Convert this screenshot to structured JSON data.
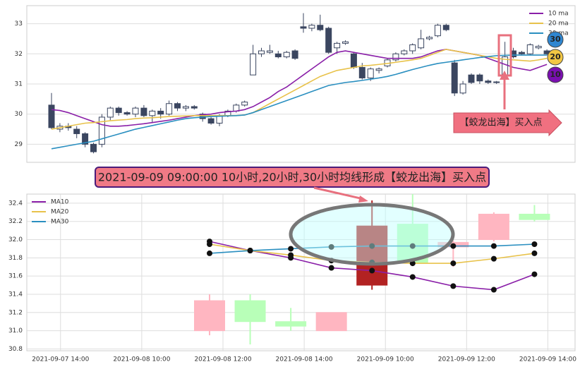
{
  "chart_data": [
    {
      "type": "candlestick",
      "open": [
        30.3,
        29.5,
        29.6,
        29.5,
        29.35,
        29.0,
        29.0,
        29.9,
        30.2,
        30.05,
        30.0,
        30.2,
        29.95,
        30.1,
        30.0,
        30.35,
        30.2,
        30.25,
        30.0,
        29.85,
        29.7,
        29.95,
        30.1,
        30.3,
        31.3,
        32.0,
        32.05,
        32.0,
        31.9,
        32.1,
        32.9,
        32.85,
        32.95,
        32.85,
        32.2,
        32.35,
        32.0,
        31.55,
        31.2,
        31.45,
        31.6,
        31.8,
        32.0,
        32.1,
        32.2,
        32.5,
        32.6,
        32.95,
        31.7,
        30.7,
        31.3,
        31.3,
        31.1,
        31.05,
        31.3,
        32.1,
        32.05,
        32.0,
        32.2,
        32.1
      ],
      "close": [
        29.55,
        29.6,
        29.55,
        29.35,
        29.0,
        28.75,
        29.9,
        30.2,
        30.05,
        30.0,
        30.2,
        29.95,
        30.1,
        30.0,
        30.35,
        30.2,
        30.25,
        30.2,
        29.85,
        29.7,
        29.95,
        30.1,
        30.3,
        30.4,
        32.0,
        32.1,
        32.1,
        31.9,
        32.05,
        31.85,
        32.85,
        32.95,
        32.8,
        32.05,
        32.35,
        32.4,
        31.55,
        31.2,
        31.5,
        31.5,
        31.8,
        32.0,
        32.1,
        32.3,
        32.5,
        32.55,
        32.95,
        32.8,
        30.7,
        31.0,
        31.05,
        31.1,
        31.05,
        31.07,
        31.9,
        31.9,
        32.0,
        32.3,
        32.25,
        32.0
      ],
      "high": [
        30.7,
        29.7,
        29.7,
        29.6,
        29.4,
        29.05,
        30.0,
        30.25,
        30.25,
        30.1,
        30.25,
        30.3,
        30.15,
        30.2,
        30.45,
        30.4,
        30.3,
        30.3,
        30.05,
        29.9,
        30.0,
        30.15,
        30.35,
        30.45,
        32.3,
        32.2,
        32.3,
        32.1,
        32.1,
        32.15,
        33.35,
        33.0,
        33.3,
        32.9,
        32.4,
        32.45,
        32.05,
        31.7,
        31.55,
        31.55,
        31.85,
        32.05,
        32.15,
        32.35,
        32.8,
        32.6,
        33.0,
        33.0,
        31.8,
        31.1,
        31.35,
        31.35,
        31.15,
        31.1,
        32.4,
        32.2,
        32.1,
        32.35,
        32.3,
        32.15
      ],
      "low": [
        29.5,
        29.4,
        29.45,
        29.2,
        28.9,
        28.7,
        28.9,
        29.8,
        29.95,
        29.95,
        29.9,
        29.9,
        29.7,
        29.85,
        29.95,
        30.1,
        30.1,
        30.15,
        29.75,
        29.65,
        29.6,
        29.9,
        30.05,
        30.25,
        31.3,
        31.9,
        32.0,
        31.85,
        31.85,
        31.8,
        32.7,
        32.75,
        32.75,
        32.0,
        32.0,
        32.3,
        31.5,
        31.15,
        31.1,
        31.35,
        31.55,
        31.75,
        31.95,
        32.0,
        32.15,
        32.45,
        32.55,
        32.75,
        30.6,
        30.65,
        31.0,
        31.0,
        31.0,
        31.0,
        31.25,
        31.85,
        31.95,
        31.95,
        32.15,
        31.95
      ],
      "up_color": "#ffffff",
      "down_color": "#3b4660",
      "series": [
        {
          "name": "10 ma",
          "color": "#8a1fa8",
          "values": [
            30.15,
            30.12,
            30.05,
            29.95,
            29.85,
            29.75,
            29.65,
            29.6,
            29.6,
            29.62,
            29.65,
            29.68,
            29.72,
            29.76,
            29.8,
            29.85,
            29.9,
            29.95,
            29.98,
            30.0,
            30.05,
            30.08,
            30.1,
            30.15,
            30.25,
            30.4,
            30.55,
            30.75,
            30.9,
            31.1,
            31.3,
            31.5,
            31.7,
            31.9,
            32.05,
            32.1,
            32.05,
            32.0,
            31.95,
            31.9,
            31.85,
            31.85,
            31.85,
            31.85,
            31.9,
            32.0,
            32.1,
            32.15,
            32.1,
            32.05,
            32.0,
            31.95,
            31.85,
            31.75,
            31.65,
            31.55,
            31.5,
            31.45,
            31.55,
            31.65
          ]
        },
        {
          "name": "20 ma",
          "color": "#e8c24a",
          "values": [
            29.5,
            29.55,
            29.6,
            29.65,
            29.7,
            29.72,
            29.75,
            29.78,
            29.8,
            29.82,
            29.85,
            29.87,
            29.88,
            29.9,
            29.92,
            29.93,
            29.94,
            29.95,
            29.95,
            29.95,
            29.95,
            29.95,
            29.95,
            29.97,
            30.05,
            30.2,
            30.35,
            30.5,
            30.65,
            30.8,
            30.95,
            31.1,
            31.25,
            31.35,
            31.45,
            31.5,
            31.55,
            31.6,
            31.62,
            31.65,
            31.68,
            31.72,
            31.76,
            31.8,
            31.85,
            31.95,
            32.05,
            32.15,
            32.1,
            32.05,
            32.0,
            31.95,
            31.9,
            31.85,
            31.82,
            31.8,
            31.78,
            31.76,
            31.8,
            31.85
          ]
        },
        {
          "name": "30 ma",
          "color": "#2a8fc0",
          "values": [
            28.85,
            28.9,
            28.95,
            29.0,
            29.05,
            29.1,
            29.18,
            29.26,
            29.34,
            29.42,
            29.5,
            29.56,
            29.62,
            29.68,
            29.74,
            29.8,
            29.85,
            29.88,
            29.9,
            29.92,
            29.93,
            29.94,
            29.95,
            29.97,
            30.05,
            30.15,
            30.25,
            30.35,
            30.45,
            30.55,
            30.65,
            30.75,
            30.85,
            30.95,
            31.0,
            31.05,
            31.08,
            31.12,
            31.16,
            31.2,
            31.25,
            31.32,
            31.4,
            31.48,
            31.55,
            31.62,
            31.68,
            31.72,
            31.76,
            31.8,
            31.84,
            31.88,
            31.91,
            31.94,
            31.95,
            31.96,
            31.96,
            31.96,
            31.96,
            31.96
          ]
        }
      ],
      "ylim": [
        28.4,
        33.6
      ],
      "yticks": [
        29,
        30,
        31,
        32,
        33
      ],
      "grid": true,
      "legend": "upper right",
      "badges": [
        {
          "text": "30",
          "color": "#2f86d0"
        },
        {
          "text": "20",
          "color": "#f2c744"
        },
        {
          "text": "10",
          "color": "#7a0fb0"
        }
      ],
      "annotation": "【蛟龙出海】买入点"
    },
    {
      "type": "candlestick",
      "title": "2021-09-09 09:00:00 10小时,20小时,30小时均线形成【蛟龙出海】买入点",
      "x": [
        0,
        1,
        2,
        3,
        4,
        5,
        6,
        7,
        8
      ],
      "open": [
        31.0,
        31.33,
        31.1,
        31.0,
        31.5,
        31.75,
        31.97,
        32.0,
        32.22
      ],
      "close": [
        31.33,
        31.1,
        31.05,
        31.2,
        32.15,
        32.17,
        31.92,
        32.28,
        32.28
      ],
      "high": [
        31.4,
        31.4,
        31.25,
        31.2,
        32.43,
        32.5,
        31.99,
        32.3,
        32.38
      ],
      "low": [
        30.95,
        30.85,
        31.0,
        31.0,
        31.45,
        31.72,
        31.7,
        31.98,
        32.2
      ],
      "colors": [
        "#ffb6c1",
        "#b8ffb8",
        "#b8ffb8",
        "#ffb6c1",
        "#b22222",
        "#b8ffb8",
        "#ffb6c1",
        "#ffb6c1",
        "#b8ffb8"
      ],
      "series": [
        {
          "name": "MA10",
          "color": "#8a1fa8",
          "values": [
            31.98,
            31.88,
            31.8,
            31.69,
            31.66,
            31.59,
            31.49,
            31.45,
            31.62
          ]
        },
        {
          "name": "MA20",
          "color": "#e8c24a",
          "values": [
            31.95,
            31.88,
            31.83,
            31.77,
            31.75,
            31.74,
            31.74,
            31.79,
            31.85
          ]
        },
        {
          "name": "MA30",
          "color": "#2a8fc0",
          "values": [
            31.85,
            31.88,
            31.9,
            31.92,
            31.93,
            31.93,
            31.93,
            31.93,
            31.95
          ]
        }
      ],
      "xlim": [
        -4.5,
        9
      ],
      "xticks": [
        {
          "value": -3.67,
          "label": "2021-09-07 14:00"
        },
        {
          "value": -1.67,
          "label": "2021-09-08 10:00"
        },
        {
          "value": 0.33,
          "label": "2021-09-08 12:00"
        },
        {
          "value": 2.33,
          "label": "2021-09-08 14:00"
        },
        {
          "value": 4.33,
          "label": "2021-09-09 10:00"
        },
        {
          "value": 6.33,
          "label": "2021-09-09 12:00"
        },
        {
          "value": 8.33,
          "label": "2021-09-09 14:00"
        }
      ],
      "ylim": [
        30.78,
        32.5
      ],
      "yticks": [
        30.8,
        {
          "value": 31.0,
          "label": "31.0"
        },
        31.2,
        31.4,
        31.6,
        31.8,
        {
          "value": 32.0,
          "label": "32.0"
        },
        32.2,
        32.4
      ],
      "grid": true,
      "legend": "upper left"
    }
  ]
}
